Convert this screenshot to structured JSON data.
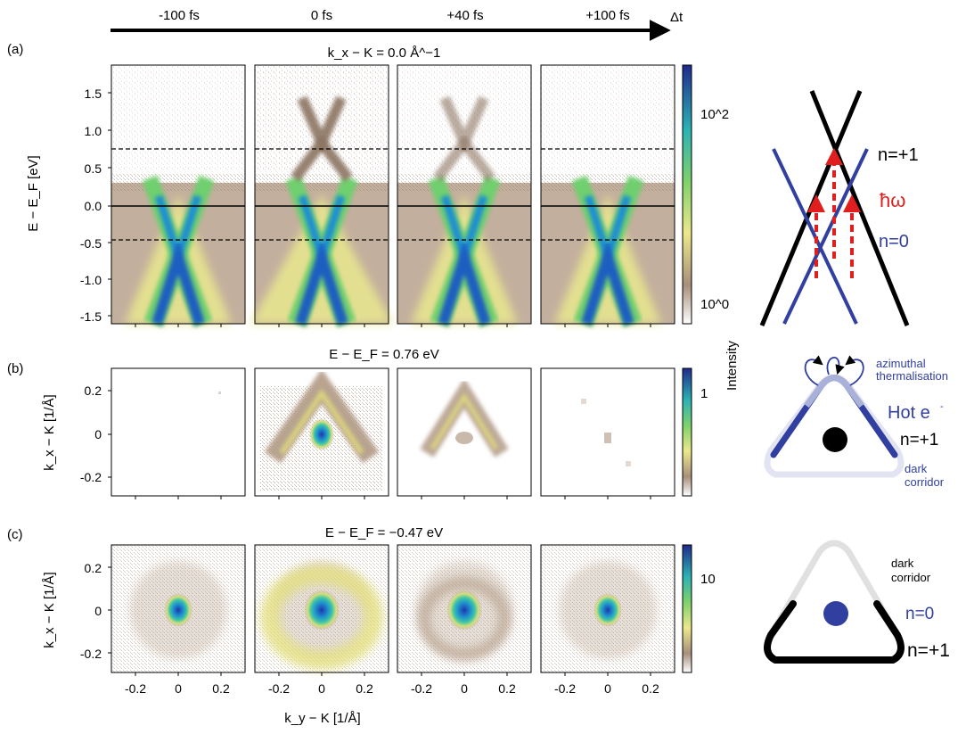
{
  "figure": {
    "timeline": {
      "labels": [
        "-100 fs",
        "0 fs",
        "+40 fs",
        "+100 fs"
      ],
      "arrow_label": "Δt"
    },
    "panel_letters": [
      "(a)",
      "(b)",
      "(c)"
    ],
    "row_a": {
      "title": "k_x − K = 0.0 Å^−1",
      "ylabel": "E − E_F [eV]",
      "yticks": [
        "1.5",
        "1.0",
        "0.5",
        "0.0",
        "-0.5",
        "-1.0",
        "-1.5"
      ],
      "colorbar_ticks": [
        "10^2",
        "10^0"
      ]
    },
    "row_b": {
      "title": "E − E_F = 0.76 eV",
      "ylabel": "k_x − K [1/Å]",
      "yticks": [
        "0.2",
        "0",
        "-0.2"
      ],
      "colorbar_ticks": [
        "1"
      ]
    },
    "row_c": {
      "title": "E − E_F = −0.47 eV",
      "ylabel": "k_x − K [1/Å]",
      "yticks": [
        "0.2",
        "0",
        "-0.2"
      ],
      "colorbar_ticks": [
        "10"
      ]
    },
    "xlabel": "k_y − K [1/Å]",
    "xticks": [
      "-0.2",
      "0",
      "0.2"
    ],
    "colorbar_label": "Intensity",
    "schematic_a": {
      "n_plus": "n=+1",
      "photon": "ħω",
      "n_zero": "n=0"
    },
    "schematic_b": {
      "azimuthal": "azimuthal",
      "thermalisation": "thermalisation",
      "hot": "Hot e",
      "hot_sup": "-",
      "n_plus": "n=+1",
      "dark": "dark",
      "corridor": "corridor"
    },
    "schematic_c": {
      "dark": "dark",
      "corridor": "corridor",
      "n_zero": "n=0",
      "n_plus": "n=+1"
    },
    "colors": {
      "blue": "#3140a0",
      "red": "#e01e1e",
      "black": "#000000"
    }
  }
}
